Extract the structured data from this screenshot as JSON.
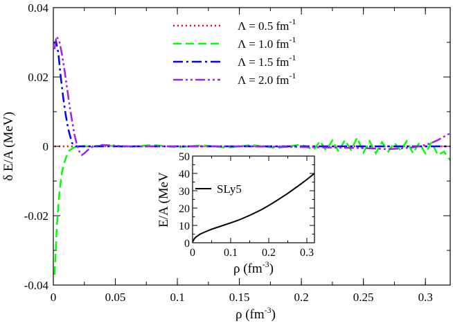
{
  "chart_data": [
    {
      "type": "line",
      "xlabel": "ρ (fm",
      "xlabel_sup": "-3",
      "xlabel_close": ")",
      "ylabel": "δ E/A (MeV)",
      "xlim": [
        0,
        0.32
      ],
      "ylim": [
        -0.04,
        0.04
      ],
      "x_ticks": [
        0,
        0.05,
        0.1,
        0.15,
        0.2,
        0.25,
        0.3
      ],
      "x_tick_labels": [
        "0",
        "0.05",
        "0.1",
        "0.15",
        "0.2",
        "0.25",
        "0.3"
      ],
      "y_ticks": [
        -0.04,
        -0.02,
        0,
        0.02,
        0.04
      ],
      "y_tick_labels": [
        "-0.04",
        "-0.02",
        "0",
        "0.02",
        "0.04"
      ],
      "grid": false,
      "legend_position": "top-center",
      "series": [
        {
          "name": "Λ = 0.5 fm",
          "name_sup": "-1",
          "color": "#ff0000",
          "dash": "dotted",
          "x": [
            0.001,
            0.05,
            0.1,
            0.15,
            0.2,
            0.25,
            0.3,
            0.32
          ],
          "y": [
            0,
            0,
            0,
            0,
            0,
            0,
            0,
            0
          ]
        },
        {
          "name": "Λ = 1.0 fm",
          "name_sup": "-1",
          "color": "#00ff00",
          "dash": "dashed",
          "x": [
            0.001,
            0.003,
            0.005,
            0.007,
            0.009,
            0.011,
            0.013,
            0.016,
            0.02,
            0.025,
            0.03,
            0.04,
            0.06,
            0.08,
            0.1,
            0.12,
            0.14,
            0.16,
            0.18,
            0.2,
            0.21,
            0.215,
            0.22,
            0.225,
            0.23,
            0.235,
            0.24,
            0.245,
            0.25,
            0.255,
            0.26,
            0.265,
            0.27,
            0.275,
            0.28,
            0.285,
            0.29,
            0.295,
            0.3,
            0.305,
            0.31,
            0.315,
            0.32
          ],
          "y": [
            -0.037,
            -0.022,
            -0.013,
            -0.0075,
            -0.0045,
            -0.0025,
            -0.0012,
            -0.0004,
            0,
            0.0001,
            -0.0002,
            0.0003,
            -0.0002,
            0.0004,
            -0.0003,
            0.0003,
            -0.0004,
            0.0004,
            -0.0005,
            0.0005,
            -0.001,
            0.0015,
            -0.0012,
            0.0017,
            -0.0015,
            0.0018,
            -0.001,
            0.0025,
            -0.0018,
            0.0015,
            -0.002,
            0.0012,
            -0.0015,
            0.001,
            -0.0012,
            0.0015,
            -0.002,
            0.001,
            -0.002,
            0.0012,
            -0.0025,
            -0.0015,
            -0.004
          ]
        },
        {
          "name": "Λ = 1.5 fm",
          "name_sup": "-1",
          "color": "#0000ff",
          "dash": "dash-dot",
          "x": [
            0.001,
            0.002,
            0.004,
            0.006,
            0.008,
            0.01,
            0.012,
            0.015,
            0.018,
            0.02,
            0.05,
            0.1,
            0.15,
            0.2,
            0.25,
            0.3,
            0.32
          ],
          "y": [
            0.0295,
            0.0305,
            0.027,
            0.02,
            0.014,
            0.009,
            0.005,
            0.001,
            0,
            0,
            0,
            0,
            0,
            0,
            0,
            0,
            0
          ]
        },
        {
          "name": "Λ = 2.0 fm",
          "name_sup": "-1",
          "color": "#a020f0",
          "dash": "dash-dot-dot",
          "x": [
            0.001,
            0.002,
            0.003,
            0.005,
            0.007,
            0.009,
            0.011,
            0.013,
            0.015,
            0.017,
            0.019,
            0.021,
            0.023,
            0.025,
            0.028,
            0.032,
            0.04,
            0.05,
            0.06,
            0.08,
            0.1,
            0.15,
            0.2,
            0.25,
            0.27,
            0.28,
            0.29,
            0.3,
            0.305,
            0.31,
            0.315,
            0.32
          ],
          "y": [
            0.028,
            0.0305,
            0.0315,
            0.03,
            0.0265,
            0.022,
            0.017,
            0.012,
            0.0075,
            0.0035,
            0.0005,
            -0.0015,
            -0.0025,
            -0.002,
            -0.001,
            0,
            0.0004,
            0.0002,
            0,
            0,
            0,
            0,
            -0.0002,
            -0.0005,
            -0.0008,
            -0.0006,
            -0.0003,
            0.0004,
            0.001,
            0.0018,
            0.0028,
            0.0038
          ]
        }
      ]
    },
    {
      "type": "line",
      "xlabel": "ρ (fm",
      "xlabel_sup": "-3",
      "xlabel_close": ")",
      "ylabel": "E/A (MeV",
      "xlim": [
        0,
        0.32
      ],
      "ylim": [
        0,
        50
      ],
      "x_ticks": [
        0,
        0.1,
        0.2,
        0.3
      ],
      "x_tick_labels": [
        "0",
        "0.1",
        "0.2",
        "0.3"
      ],
      "y_ticks": [
        0,
        10,
        20,
        30,
        40,
        50
      ],
      "y_tick_labels": [
        "0",
        "10",
        "20",
        "30",
        "40",
        "50"
      ],
      "grid": false,
      "legend_position": "top-left",
      "series": [
        {
          "name": "SLy5",
          "color": "#000000",
          "x": [
            0,
            0.005,
            0.01,
            0.02,
            0.03,
            0.05,
            0.08,
            0.1,
            0.12,
            0.15,
            0.18,
            0.2,
            0.22,
            0.25,
            0.28,
            0.3,
            0.32
          ],
          "y": [
            0.5,
            2.5,
            3.5,
            5.0,
            6.0,
            7.8,
            10.0,
            11.5,
            13.0,
            15.8,
            19.0,
            21.5,
            24.2,
            28.5,
            33.2,
            36.5,
            40.0
          ]
        }
      ]
    }
  ]
}
